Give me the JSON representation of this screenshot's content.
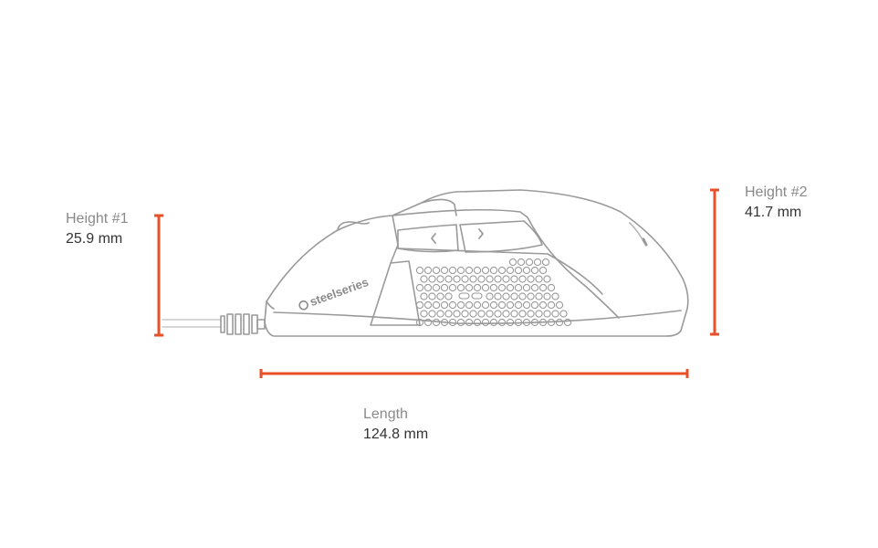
{
  "colors": {
    "accent": "#e8502a",
    "outline": "#9a9a9a",
    "label": "#8a8a8a",
    "value": "#333333"
  },
  "height1": {
    "title": "Height #1",
    "value": "25.9 mm"
  },
  "height2": {
    "title": "Height #2",
    "value": "41.7 mm"
  },
  "length": {
    "title": "Length",
    "value": "124.8 mm"
  },
  "brand": {
    "logo_text": "steelseries"
  }
}
